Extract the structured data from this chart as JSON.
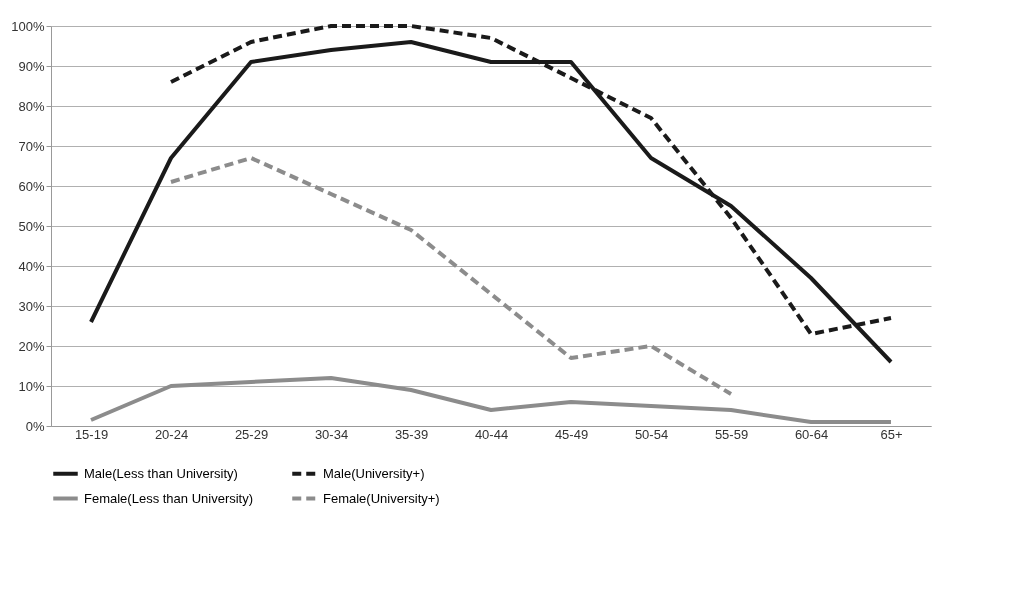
{
  "chart_data": {
    "type": "line",
    "categories": [
      "15-19",
      "20-24",
      "25-29",
      "30-34",
      "35-39",
      "40-44",
      "45-49",
      "50-54",
      "55-59",
      "60-64",
      "65+"
    ],
    "ylim": [
      0,
      100
    ],
    "yticks": [
      {
        "value": 0,
        "label": "0%"
      },
      {
        "value": 10,
        "label": "10%"
      },
      {
        "value": 20,
        "label": "20%"
      },
      {
        "value": 30,
        "label": "30%"
      },
      {
        "value": 40,
        "label": "40%"
      },
      {
        "value": 50,
        "label": "50%"
      },
      {
        "value": 60,
        "label": "60%"
      },
      {
        "value": 70,
        "label": "70%"
      },
      {
        "value": 80,
        "label": "80%"
      },
      {
        "value": 90,
        "label": "90%"
      },
      {
        "value": 100,
        "label": "100%"
      }
    ],
    "grid": "y",
    "legend": "bottom",
    "marker": "none",
    "series": [
      {
        "name": "Male(Less than University)",
        "color": "#1a1a1a",
        "line_style": "solid",
        "values": [
          26,
          67,
          91,
          94,
          96,
          91,
          91,
          67,
          55,
          37,
          16
        ]
      },
      {
        "name": "Male(University+)",
        "color": "#1a1a1a",
        "line_style": "dashed",
        "values": [
          null,
          86,
          96,
          100,
          100,
          97,
          87,
          77,
          52,
          23,
          27
        ]
      },
      {
        "name": "Female(Less than University)",
        "color": "#8c8c8c",
        "line_style": "solid",
        "values": [
          1.5,
          10,
          11,
          12,
          9,
          4,
          6,
          5,
          4,
          1,
          1
        ]
      },
      {
        "name": "Female(University+)",
        "color": "#8c8c8c",
        "line_style": "dashed",
        "values": [
          null,
          61,
          67,
          58,
          49,
          33,
          17,
          20,
          8,
          null,
          null
        ]
      }
    ]
  }
}
